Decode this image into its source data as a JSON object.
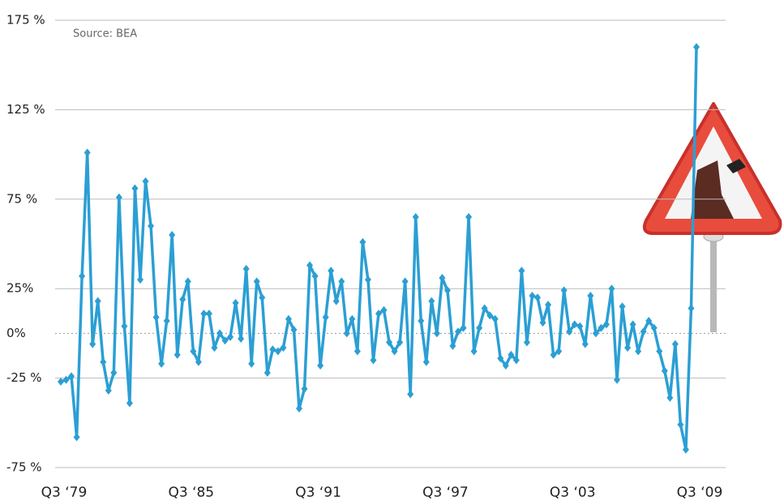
{
  "chart_data": {
    "type": "line",
    "annotation": "Source: BEA",
    "categories": [
      "Q3 ‘79",
      null,
      null,
      null,
      null,
      null,
      null,
      null,
      null,
      null,
      null,
      null,
      null,
      null,
      null,
      null,
      null,
      null,
      null,
      null,
      null,
      null,
      null,
      null,
      "Q3 ‘85",
      null,
      null,
      null,
      null,
      null,
      null,
      null,
      null,
      null,
      null,
      null,
      null,
      null,
      null,
      null,
      null,
      null,
      null,
      null,
      null,
      null,
      null,
      null,
      "Q3 ‘91",
      null,
      null,
      null,
      null,
      null,
      null,
      null,
      null,
      null,
      null,
      null,
      null,
      null,
      null,
      null,
      null,
      null,
      null,
      null,
      null,
      null,
      null,
      null,
      "Q3 ‘97",
      null,
      null,
      null,
      null,
      null,
      null,
      null,
      null,
      null,
      null,
      null,
      null,
      null,
      null,
      null,
      null,
      null,
      null,
      null,
      null,
      null,
      null,
      null,
      "Q3 ‘03",
      null,
      null,
      null,
      null,
      null,
      null,
      null,
      null,
      null,
      null,
      null,
      null,
      null,
      null,
      null,
      null,
      null,
      null,
      null,
      null,
      null,
      null,
      null,
      "Q3 ‘09"
    ],
    "series": [
      {
        "color": "#2b9fd4",
        "values": [
          -27,
          -26,
          -24,
          -58,
          32,
          101,
          -6,
          18,
          -16,
          -32,
          -22,
          76,
          4,
          -39,
          81,
          30,
          85,
          60,
          9,
          -17,
          7,
          55,
          -12,
          19,
          29,
          -10,
          -16,
          11,
          11,
          -8,
          0,
          -4,
          -2,
          17,
          -3,
          36,
          -17,
          29,
          20,
          -22,
          -9,
          -10,
          -8,
          8,
          2,
          -42,
          -31,
          38,
          32,
          -18,
          9,
          35,
          18,
          29,
          0,
          8,
          -10,
          51,
          30,
          -15,
          11,
          13,
          -5,
          -10,
          -5,
          29,
          -34,
          65,
          7,
          -16,
          18,
          0,
          31,
          24,
          -7,
          1,
          3,
          65,
          -10,
          3,
          14,
          10,
          8,
          -14,
          -18,
          -12,
          -15,
          35,
          -5,
          21,
          20,
          6,
          16,
          -12,
          -10,
          24,
          1,
          5,
          4,
          -6,
          21,
          0,
          3,
          5,
          25,
          -26,
          15,
          -8,
          5,
          -10,
          1,
          7,
          3,
          -10,
          -21,
          -36,
          -6,
          -51,
          -65,
          14,
          160
        ]
      }
    ],
    "ylim": [
      -75,
      175
    ],
    "yticks": [
      {
        "value": -75,
        "label": "-75 %"
      },
      {
        "value": -25,
        "label": "-25 %"
      },
      {
        "value": 0,
        "label": "0%"
      },
      {
        "value": 25,
        "label": "25%"
      },
      {
        "value": 75,
        "label": "75 %"
      },
      {
        "value": 125,
        "label": "125 %"
      },
      {
        "value": 175,
        "label": "175 %"
      }
    ],
    "grid": true
  }
}
